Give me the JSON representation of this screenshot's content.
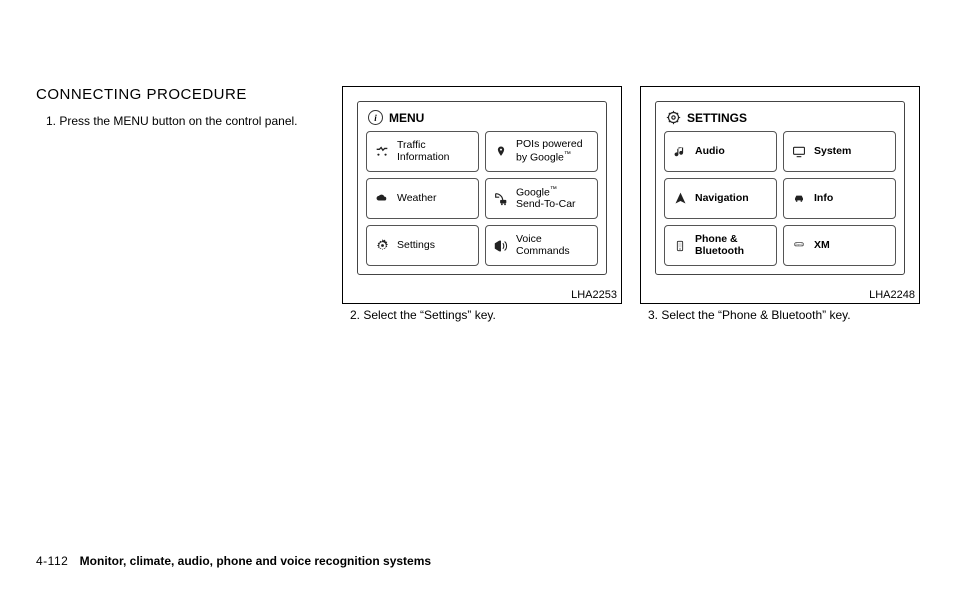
{
  "heading": "CONNECTING PROCEDURE",
  "step1_num": "1.",
  "step1_text": "Press the MENU button on the control panel.",
  "shot1": {
    "id": "LHA2253",
    "title": "MENU",
    "title_icon": "info-icon",
    "buttons": [
      {
        "icon": "traffic-icon",
        "label_html": "Traffic<br>Information"
      },
      {
        "icon": "pin-icon",
        "label_html": "POIs powered<br>by Google<span class='tm'>™</span>"
      },
      {
        "icon": "cloud-icon",
        "label_html": "Weather"
      },
      {
        "icon": "car-link-icon",
        "label_html": "Google<span class='tm'>™</span><br>Send-To-Car"
      },
      {
        "icon": "gear-icon",
        "label_html": "Settings"
      },
      {
        "icon": "voice-icon",
        "label_html": "Voice<br>Commands"
      }
    ],
    "caption": "2.  Select the “Settings” key."
  },
  "shot2": {
    "id": "LHA2248",
    "title": "SETTINGS",
    "title_icon": "gear-outline-icon",
    "buttons": [
      {
        "icon": "note-icon",
        "label_html": "<b>Audio</b>"
      },
      {
        "icon": "monitor-icon",
        "label_html": "<b>System</b>"
      },
      {
        "icon": "nav-arrow-icon",
        "label_html": "<b>Navigation</b>"
      },
      {
        "icon": "car-icon",
        "label_html": "<b>Info</b>"
      },
      {
        "icon": "phone-icon",
        "label_html": "<b>Phone &amp;<br>Bluetooth</b>"
      },
      {
        "icon": "xm-icon",
        "label_html": "<b>XM</b>"
      }
    ],
    "caption": "3.  Select the “Phone & Bluetooth” key."
  },
  "footer": {
    "page": "4-112",
    "section": "Monitor, climate, audio, phone and voice recognition systems"
  },
  "colors": {
    "text": "#000000",
    "border": "#000000",
    "btn_border": "#555555",
    "bg": "#ffffff"
  }
}
